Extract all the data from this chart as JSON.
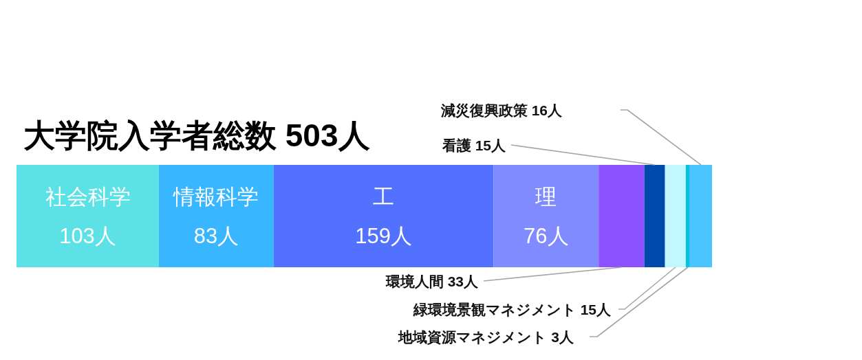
{
  "chart_data": {
    "type": "bar",
    "orientation": "horizontal",
    "stacked": true,
    "title": "大学院入学者総数 503人",
    "categories": [
      null
    ],
    "xlim": [
      0,
      503
    ],
    "tick_labels": false,
    "series": [
      {
        "name": "社会科学",
        "color": "#5ce1e6",
        "values": [
          103
        ],
        "value_labels": [
          "103人"
        ]
      },
      {
        "name": "情報科学",
        "color": "#38b6ff",
        "values": [
          83
        ],
        "value_labels": [
          "83人"
        ]
      },
      {
        "name": "工",
        "color": "#5271ff",
        "values": [
          159
        ],
        "value_labels": [
          "159人"
        ]
      },
      {
        "name": "理",
        "color": "#7f8bff",
        "values": [
          76
        ],
        "value_labels": [
          "76人"
        ]
      },
      {
        "name": "環境人間",
        "color": "#8c52ff",
        "values": [
          33
        ],
        "value_labels": [
          "33人"
        ]
      },
      {
        "name": "看護",
        "color": "#004aad",
        "values": [
          15
        ],
        "value_labels": [
          "15人"
        ]
      },
      {
        "name": "緑環境景観マネジメント",
        "color": "#c1f8ff",
        "values": [
          15
        ],
        "value_labels": [
          "15人"
        ]
      },
      {
        "name": "地域資源マネジメント",
        "color": "#0cc0df",
        "values": [
          3
        ],
        "value_labels": [
          "3人"
        ]
      },
      {
        "name": "減災復興政策",
        "color": "#4bc5ff",
        "values": [
          16
        ],
        "value_labels": [
          "16人"
        ]
      }
    ]
  }
}
